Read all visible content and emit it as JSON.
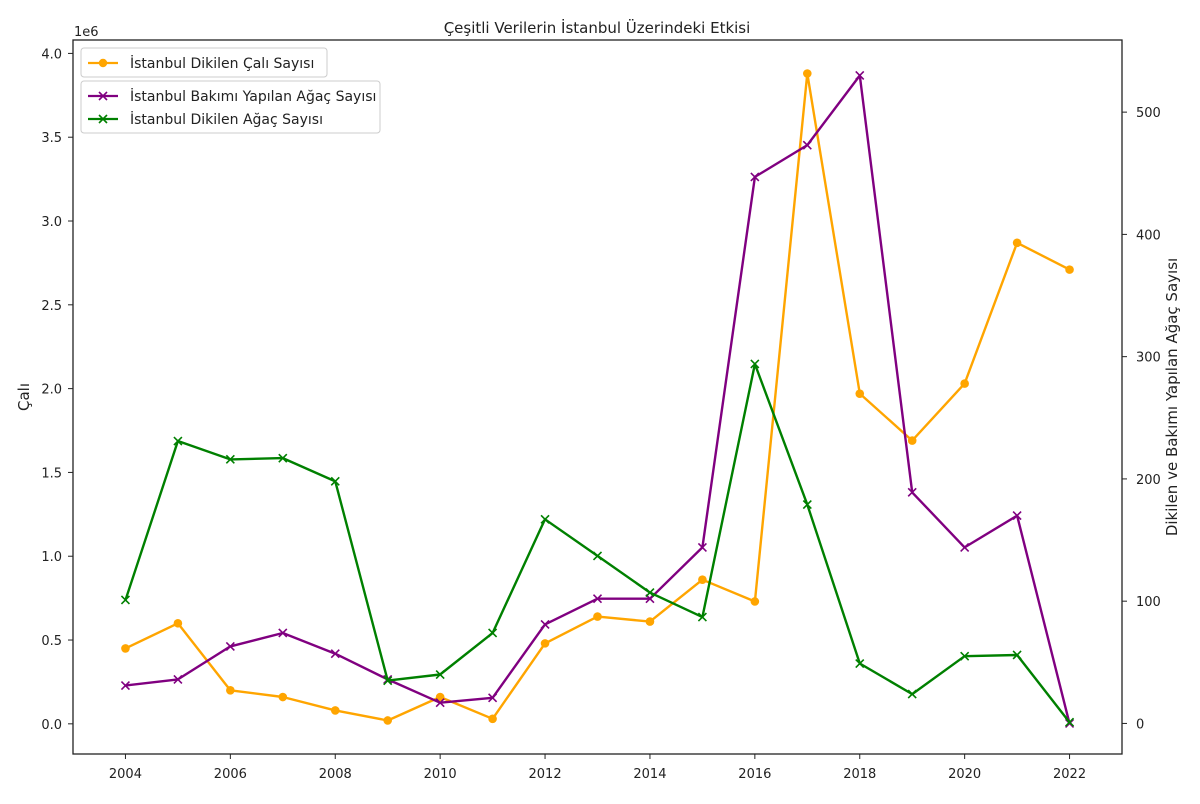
{
  "chart_data": {
    "type": "line",
    "title": "Çeşitli Verilerin İstanbul Üzerindeki Etkisi",
    "ylabel": "Çalı",
    "y2label": "Dikilen ve Bakımı Yapılan Ağaç Sayısı",
    "y_offset_label": "1e6",
    "x": [
      2004,
      2005,
      2006,
      2007,
      2008,
      2009,
      2010,
      2011,
      2012,
      2013,
      2014,
      2015,
      2016,
      2017,
      2018,
      2019,
      2020,
      2021,
      2022
    ],
    "xticks": [
      2004,
      2006,
      2008,
      2010,
      2012,
      2014,
      2016,
      2018,
      2020,
      2022
    ],
    "xlim": [
      2003,
      2023
    ],
    "ylim": [
      -0.18,
      4.08
    ],
    "yticks": [
      0.0,
      0.5,
      1.0,
      1.5,
      2.0,
      2.5,
      3.0,
      3.5,
      4.0
    ],
    "ytick_labels": [
      "0.0",
      "0.5",
      "1.0",
      "1.5",
      "2.0",
      "2.5",
      "3.0",
      "3.5",
      "4.0"
    ],
    "y2lim": [
      -25,
      559
    ],
    "y2ticks": [
      0,
      100,
      200,
      300,
      400,
      500
    ],
    "grid": false,
    "series": [
      {
        "name": "İstanbul Dikilen Çalı Sayısı",
        "axis": "left",
        "color": "#FFA500",
        "marker": "circle",
        "values": [
          0.45,
          0.6,
          0.2,
          0.16,
          0.08,
          0.02,
          0.16,
          0.03,
          0.48,
          0.64,
          0.61,
          0.86,
          0.73,
          3.88,
          1.97,
          1.69,
          2.03,
          2.87,
          2.71
        ]
      },
      {
        "name": "İstanbul Bakımı Yapılan Ağaç Sayısı",
        "axis": "right",
        "color": "#800080",
        "marker": "x",
        "values": [
          31,
          36,
          63,
          74,
          57,
          36,
          17,
          21,
          81,
          102,
          102,
          144,
          447,
          473,
          530,
          189,
          144,
          170,
          0
        ]
      },
      {
        "name": "İstanbul Dikilen Ağaç Sayısı",
        "axis": "right",
        "color": "#008000",
        "marker": "x",
        "values": [
          101,
          231,
          216,
          217,
          198,
          35,
          40,
          74,
          167,
          137,
          107,
          87,
          294,
          179,
          49,
          24,
          55,
          56,
          1
        ]
      }
    ],
    "legends": [
      {
        "placement": "upper-left",
        "entries": [
          0
        ]
      },
      {
        "placement": "upper-left-below",
        "entries": [
          1,
          2
        ]
      }
    ]
  }
}
